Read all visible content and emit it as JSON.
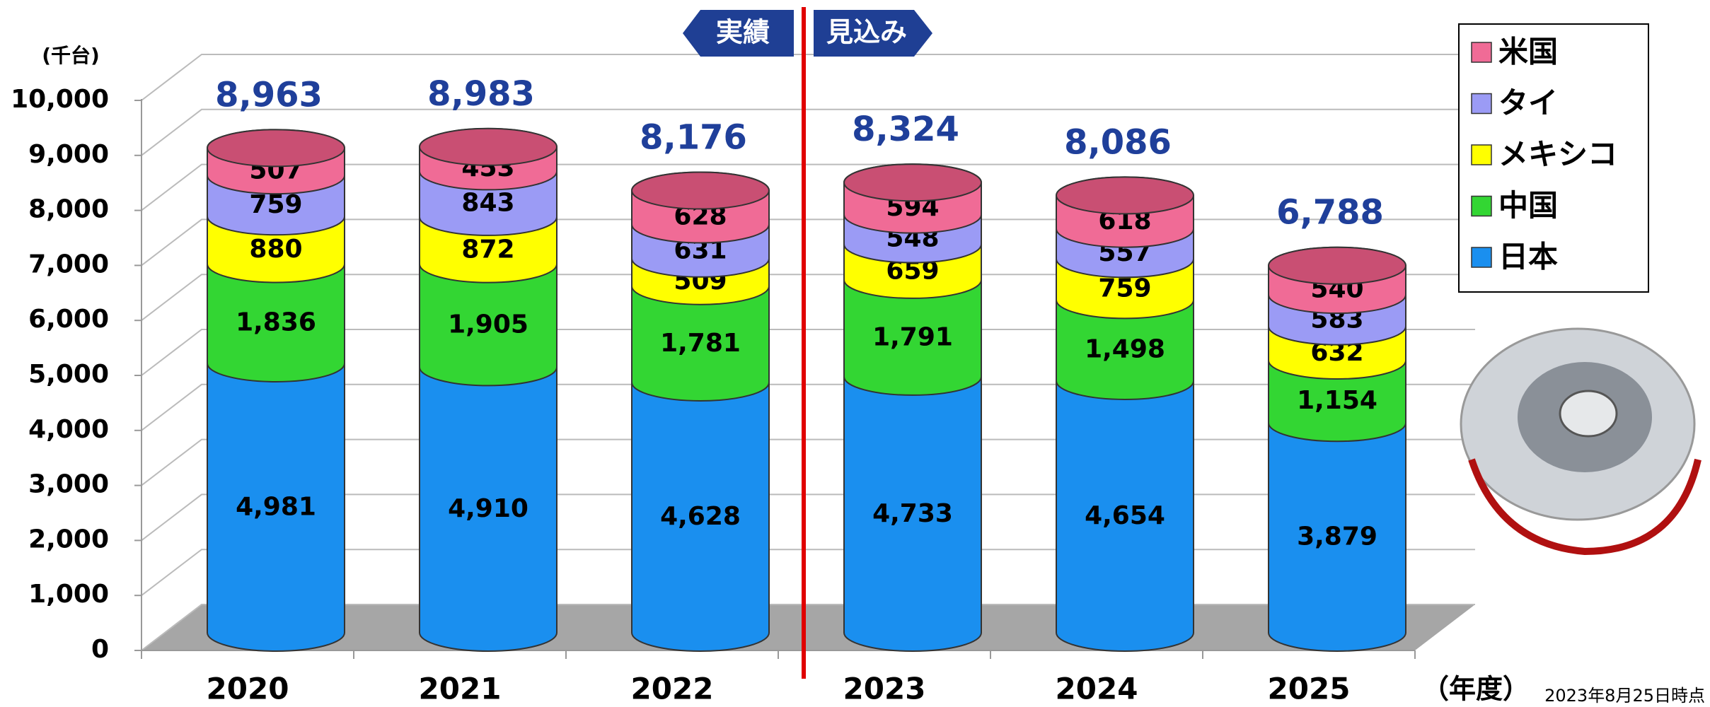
{
  "chart_data": {
    "type": "stacked-cylinder",
    "y_axis_label": "(千台)",
    "x_axis_label": "（年度）",
    "period_labels": [
      "実績",
      "見込み"
    ],
    "note": "2023年8月25日時点",
    "categories": [
      "2020",
      "2021",
      "2022",
      "2023",
      "2024",
      "2025"
    ],
    "series": [
      {
        "name": "日本",
        "color": "#1a8fef",
        "values": [
          4981,
          4910,
          4628,
          4733,
          4654,
          3879
        ],
        "value_labels": [
          "4,981",
          "4,910",
          "4,628",
          "4,733",
          "4,654",
          "3,879"
        ]
      },
      {
        "name": "中国",
        "color": "#33d633",
        "values": [
          1836,
          1905,
          1781,
          1791,
          1498,
          1154
        ],
        "value_labels": [
          "1,836",
          "1,905",
          "1,781",
          "1,791",
          "1,498",
          "1,154"
        ]
      },
      {
        "name": "メキシコ",
        "color": "#ffff00",
        "values": [
          880,
          872,
          509,
          659,
          759,
          632
        ]
      },
      {
        "name": "タイ",
        "color": "#9b9bf5",
        "values": [
          759,
          843,
          631,
          548,
          557,
          583
        ]
      },
      {
        "name": "米国",
        "color": "#f06b96",
        "values": [
          507,
          453,
          628,
          594,
          618,
          540
        ]
      }
    ],
    "totals": {
      "values": [
        8963,
        8983,
        8176,
        8324,
        8086,
        6788
      ],
      "value_labels": [
        "8,963",
        "8,983",
        "8,176",
        "8,324",
        "8,086",
        "6,788"
      ]
    },
    "ylim": [
      0,
      10000
    ],
    "yticks": [
      0,
      {
        "value": 1000,
        "label": "1,000"
      },
      {
        "value": 2000,
        "label": "2,000"
      },
      {
        "value": 3000,
        "label": "3,000"
      },
      {
        "value": 4000,
        "label": "4,000"
      },
      {
        "value": 5000,
        "label": "5,000"
      },
      {
        "value": 6000,
        "label": "6,000"
      },
      {
        "value": 7000,
        "label": "7,000"
      },
      {
        "value": 8000,
        "label": "8,000"
      },
      {
        "value": 9000,
        "label": "9,000"
      },
      {
        "value": 10000,
        "label": "10,000"
      }
    ],
    "grid": true
  }
}
